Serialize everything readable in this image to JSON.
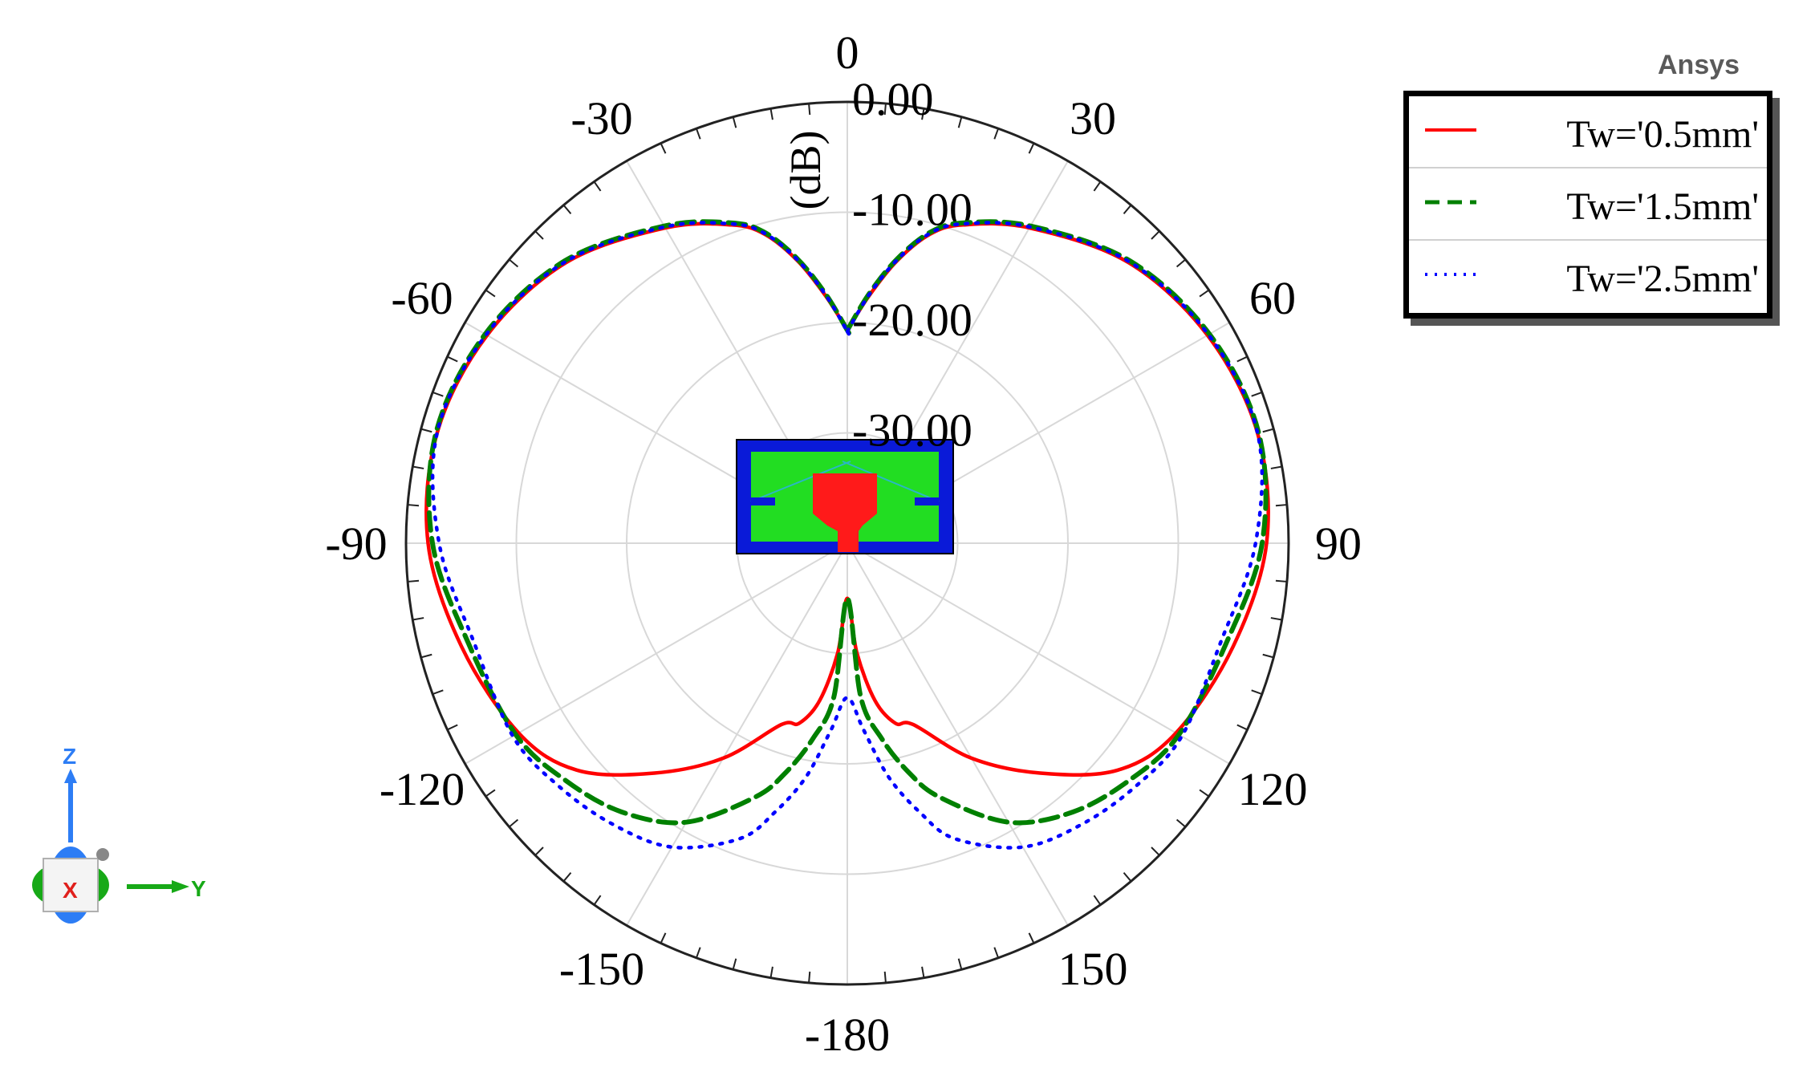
{
  "brand": "Ansys",
  "chart_data": {
    "type": "polar-line",
    "unit_label": "(dB)",
    "radial_ticks": [
      "0.00",
      "-10.00",
      "-20.00",
      "-30.00"
    ],
    "radial_range": [
      -40,
      0
    ],
    "angle_labels": [
      "0",
      "30",
      "60",
      "90",
      "120",
      "150",
      "-180",
      "-150",
      "-120",
      "-90",
      "-60",
      "-30"
    ],
    "angle_values": [
      0,
      30,
      60,
      90,
      120,
      150,
      180,
      -150,
      -120,
      -90,
      -60,
      -30
    ],
    "legend_position": "top-right",
    "grid": true,
    "theta_deg": [
      0,
      5,
      10,
      15,
      20,
      30,
      45,
      60,
      75,
      90,
      105,
      120,
      130,
      140,
      150,
      160,
      165,
      170,
      175,
      180
    ],
    "series": [
      {
        "name": "Tw='0.5mm'",
        "color": "#ff0000",
        "style": "solid",
        "values_db": [
          -20.7,
          -17.5,
          -14.0,
          -11.0,
          -9.3,
          -7.0,
          -4.0,
          -2.3,
          -1.5,
          -2.0,
          -3.8,
          -5.6,
          -8.0,
          -12.8,
          -17.5,
          -22.5,
          -23.1,
          -25.5,
          -30.0,
          -35.0
        ]
      },
      {
        "name": "Tw='1.5mm'",
        "color": "#008000",
        "style": "dashed",
        "values_db": [
          -20.7,
          -17.3,
          -13.8,
          -10.8,
          -9.1,
          -6.8,
          -3.8,
          -2.1,
          -1.4,
          -2.4,
          -4.5,
          -5.3,
          -6.6,
          -8.2,
          -10.8,
          -15.5,
          -18.5,
          -22.0,
          -26.0,
          -35.0
        ]
      },
      {
        "name": "Tw='2.5mm'",
        "color": "#0000ff",
        "style": "dotted",
        "values_db": [
          -20.8,
          -17.4,
          -13.9,
          -10.9,
          -9.2,
          -6.9,
          -3.9,
          -2.2,
          -1.5,
          -3.0,
          -5.0,
          -5.0,
          -5.8,
          -6.8,
          -8.2,
          -11.5,
          -14.8,
          -18.5,
          -23.0,
          -26.0
        ]
      }
    ]
  },
  "legend": {
    "items": [
      "Tw='0.5mm'",
      "Tw='1.5mm'",
      "Tw='2.5mm'"
    ]
  },
  "triad": {
    "z": "Z",
    "y": "Y",
    "x": "X"
  }
}
